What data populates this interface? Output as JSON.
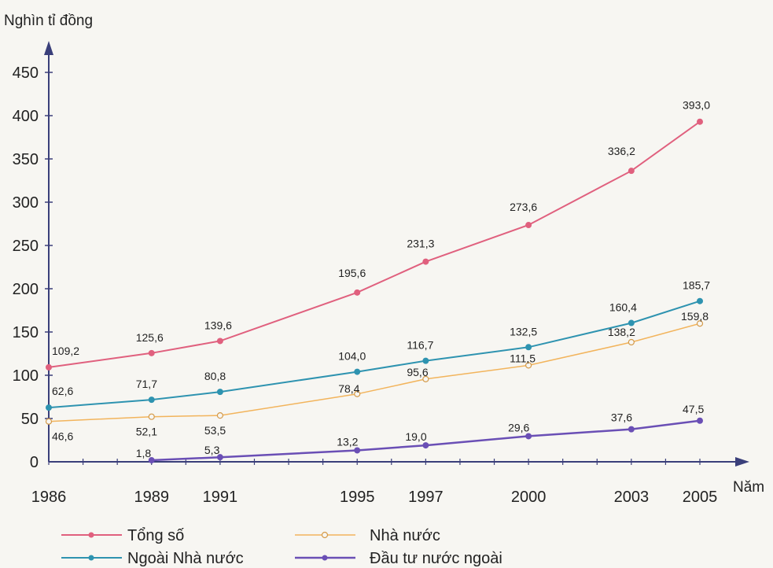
{
  "chart_data": {
    "type": "line",
    "ylabel": "Nghìn tỉ đồng",
    "xlabel": "Năm",
    "x": [
      1986,
      1989,
      1991,
      1995,
      1997,
      2000,
      2003,
      2005
    ],
    "x_tick_labels": [
      "1986",
      "1989",
      "1991",
      "1995",
      "1997",
      "2000",
      "2003",
      "2005"
    ],
    "ylim": [
      0,
      450
    ],
    "y_ticks": [
      0,
      50,
      100,
      150,
      200,
      250,
      300,
      350,
      400,
      450
    ],
    "y_tick_labels": [
      "0",
      "50",
      "100",
      "150",
      "200",
      "250",
      "300",
      "350",
      "400",
      "450"
    ],
    "grid": false,
    "legend_position": "bottom",
    "series": [
      {
        "name": "Tổng số",
        "color": "#e0607e",
        "marker": "filled",
        "x": [
          1986,
          1989,
          1991,
          1995,
          1997,
          2000,
          2003,
          2005
        ],
        "values": [
          109.2,
          125.6,
          139.6,
          195.6,
          231.3,
          273.6,
          336.2,
          393.0
        ],
        "labels": [
          "109,2",
          "125,6",
          "139,6",
          "195,6",
          "231,3",
          "273,6",
          "336,2",
          "393,0"
        ]
      },
      {
        "name": "Nhà nước",
        "color": "#f2b45c",
        "marker": "hollow",
        "x": [
          1986,
          1989,
          1991,
          1995,
          1997,
          2000,
          2003,
          2005
        ],
        "values": [
          46.6,
          52.1,
          53.5,
          78.4,
          95.6,
          111.5,
          138.2,
          159.8
        ],
        "labels": [
          "46,6",
          "52,1",
          "53,5",
          "78,4",
          "95,6",
          "111,5",
          "138,2",
          "159,8"
        ]
      },
      {
        "name": "Ngoài Nhà nước",
        "color": "#2e93b0",
        "marker": "filled",
        "x": [
          1986,
          1989,
          1991,
          1995,
          1997,
          2000,
          2003,
          2005
        ],
        "values": [
          62.6,
          71.7,
          80.8,
          104.0,
          116.7,
          132.5,
          160.4,
          185.7
        ],
        "labels": [
          "62,6",
          "71,7",
          "80,8",
          "104,0",
          "116,7",
          "132,5",
          "160,4",
          "185,7"
        ]
      },
      {
        "name": "Đầu tư nước ngoài",
        "color": "#6a4fb5",
        "marker": "filled",
        "x": [
          1989,
          1991,
          1995,
          1997,
          2000,
          2003,
          2005
        ],
        "values": [
          1.8,
          5.3,
          13.2,
          19.0,
          29.6,
          37.6,
          47.5
        ],
        "labels": [
          "1,8",
          "5,3",
          "13,2",
          "19,0",
          "29,6",
          "37,6",
          "47,5"
        ]
      }
    ]
  }
}
